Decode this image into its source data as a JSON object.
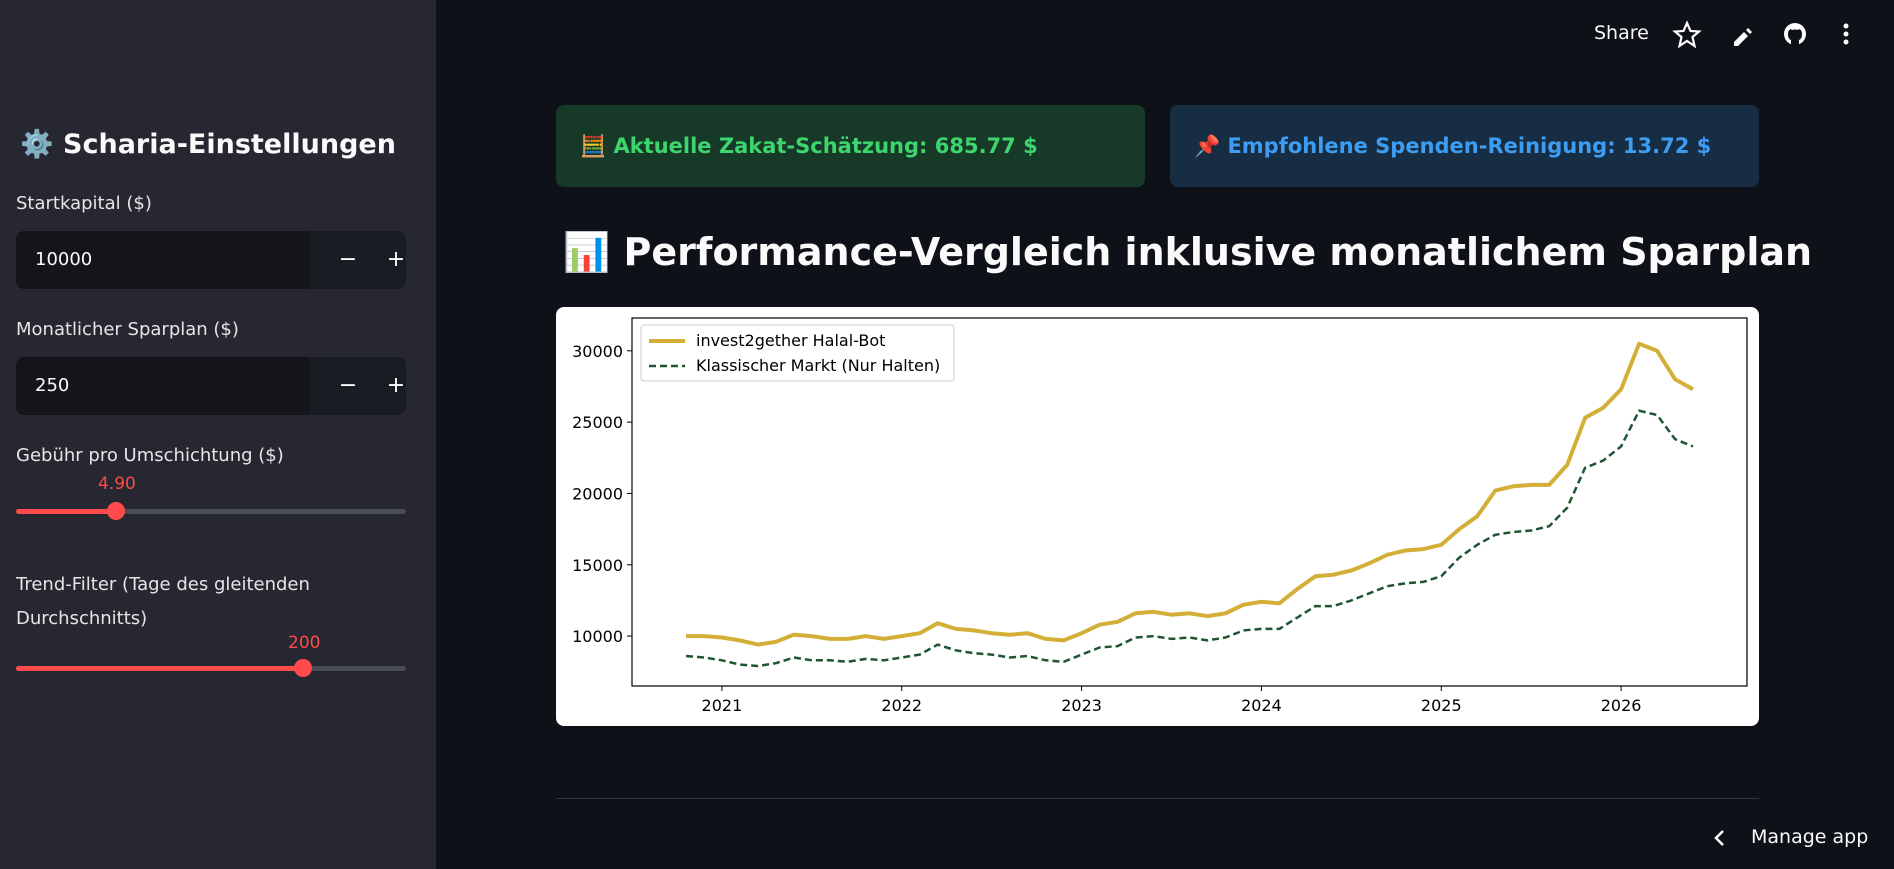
{
  "header": {
    "actions": [
      "Share"
    ],
    "manage": "Manage app"
  },
  "sidebar": {
    "title": "⚙️ Scharia-Einstellungen",
    "inputs": [
      {
        "label": "Startkapital ($)",
        "value": "10000"
      },
      {
        "label": "Monatlicher Sparplan ($)",
        "value": "250"
      }
    ],
    "sliders": [
      {
        "label": "Gebühr pro Umschichtung ($)",
        "value": "4.90"
      },
      {
        "label": "Trend-Filter (Tage des gleitenden Durchschnitts)",
        "value": "200"
      }
    ]
  },
  "alerts": [
    "🧮 Aktuelle Zakat-Schätzung: 685.77 $",
    "📌 Empfohlene Spenden-Reinigung: 13.72 $"
  ],
  "heading": "📊 Performance-Vergleich inklusive monatlichem Sparplan",
  "chart_data": {
    "type": "line",
    "x": [
      2020.8,
      2020.9,
      2021.0,
      2021.1,
      2021.2,
      2021.3,
      2021.4,
      2021.5,
      2021.6,
      2021.7,
      2021.8,
      2021.9,
      2022.0,
      2022.1,
      2022.2,
      2022.3,
      2022.4,
      2022.5,
      2022.6,
      2022.7,
      2022.8,
      2022.9,
      2023.0,
      2023.1,
      2023.2,
      2023.3,
      2023.4,
      2023.5,
      2023.6,
      2023.7,
      2023.8,
      2023.9,
      2024.0,
      2024.1,
      2024.2,
      2024.3,
      2024.4,
      2024.5,
      2024.6,
      2024.7,
      2024.8,
      2024.9,
      2025.0,
      2025.1,
      2025.2,
      2025.3,
      2025.4,
      2025.5,
      2025.6,
      2025.7,
      2025.8,
      2025.9,
      2026.0,
      2026.1,
      2026.2,
      2026.3,
      2026.4
    ],
    "series": [
      {
        "name": "invest2gether Halal-Bot",
        "color": "#d4af37",
        "dash": false,
        "values": [
          10000,
          10000,
          9900,
          9700,
          9400,
          9600,
          10100,
          10000,
          9800,
          9800,
          10000,
          9800,
          10000,
          10200,
          10900,
          10500,
          10400,
          10200,
          10100,
          10200,
          9800,
          9700,
          10200,
          10800,
          11000,
          11600,
          11700,
          11500,
          11600,
          11400,
          11600,
          12200,
          12400,
          12300,
          13300,
          14200,
          14300,
          14600,
          15100,
          15700,
          16000,
          16100,
          16400,
          17500,
          18400,
          20200,
          20500,
          20600,
          20600,
          22000,
          25300,
          26000,
          27300,
          30500,
          30000,
          28000,
          27300
        ]
      },
      {
        "name": "Klassischer Markt (Nur Halten)",
        "color": "#1e5631",
        "dash": true,
        "values": [
          8600,
          8500,
          8300,
          8000,
          7900,
          8100,
          8500,
          8300,
          8300,
          8200,
          8400,
          8300,
          8500,
          8700,
          9400,
          9000,
          8800,
          8700,
          8500,
          8600,
          8300,
          8200,
          8700,
          9200,
          9300,
          9900,
          10000,
          9800,
          9900,
          9700,
          9900,
          10400,
          10500,
          10500,
          11300,
          12100,
          12100,
          12500,
          13000,
          13500,
          13700,
          13800,
          14200,
          15500,
          16400,
          17100,
          17300,
          17400,
          17700,
          19000,
          21800,
          22300,
          23300,
          25800,
          25500,
          23800,
          23300
        ]
      }
    ],
    "xlim": [
      2020.5,
      2026.7
    ],
    "xticks": [
      2021,
      2022,
      2023,
      2024,
      2025,
      2026
    ],
    "ylim": [
      6500,
      32300
    ],
    "yticks": [
      10000,
      15000,
      20000,
      25000,
      30000
    ],
    "grid": false,
    "legend": "upper left"
  }
}
